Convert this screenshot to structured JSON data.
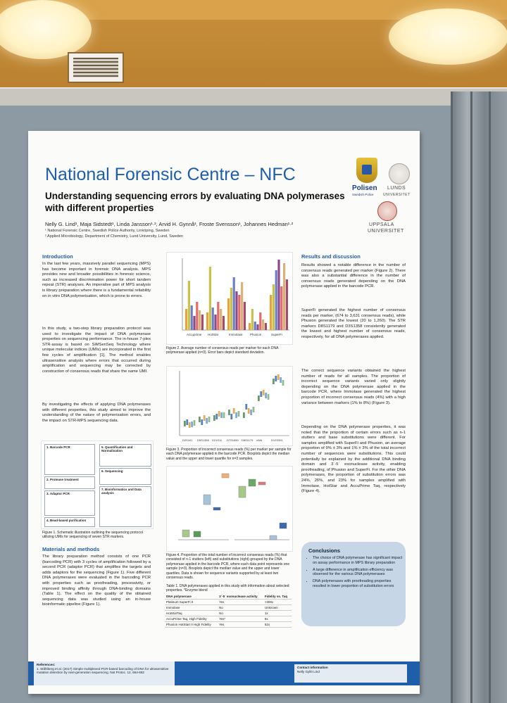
{
  "poster": {
    "title": "National Forensic Centre – NFC",
    "subtitle": "Understanding sequencing errors by evaluating DNA polymerases with different properties",
    "authors": "Nelly G. Lind¹, Maja Sidstedt¹, Linda Jansson¹·², Arvid H. Gynnå¹, Froste Svensson¹, Johannes Hedman¹·²",
    "affiliation_1": "¹ National Forensic Centre, Swedish Police Authority, Linköping, Sweden",
    "affiliation_2": "² Applied Microbiology, Department of Chemistry, Lund University, Lund, Sweden",
    "logos": {
      "police_name": "Polisen",
      "police_sub": "Swedish Police",
      "lund": "LUNDS",
      "lund_sub": "UNIVERSITET",
      "uppsala": "UPPSALA",
      "uppsala_sub": "UNIVERSITET"
    },
    "sections": {
      "intro_heading": "Introduction",
      "intro_p1": "In the last few years, massively parallel sequencing (MPS) has become important in forensic DNA analysis. MPS provides new and broader possibilities in forensic science, such as increased discrimination power for short tandem repeat (STR) analyses. An imperative part of MPS analysis is library preparation where there is a fundamental reliability on in vitro DNA polymerisation, which is prone to errors.",
      "intro_p2": "In this study, a two-step library preparation protocol was used to investigate the impact of DNA polymerase properties on sequencing performance. The in-house 7-plex STR-assay is based on SiMSenSeq Technology where unique molecular indices (UMIs) are incorporated in the first few cycles of amplification [1]. The method enables ultrasensitive analysis where errors that occurred during amplification and sequencing may be corrected by construction of consensus reads that share the same UMI.",
      "intro_p3": "By investigating the effects of applying DNA polymerases with different properties, this study aimed to improve the understanding of the nature of polymerisation errors, and the impact on STR-MPS sequencing data.",
      "methods_heading": "Materials and methods",
      "methods_p": "The library preparation method consists of one PCR (barcoding PCR) with 3 cycles of amplification followed by a second PCR (adaptor PCR) that amplifies the targets and adds adaptors for the sequencing (Figure 1). Five different DNA polymerases were evaluated in the barcoding PCR with properties such as proofreading, processivity, or improved binding affinity through DNA-binding domains (Table 1). The effect on the quality of the obtained sequencing data was studied using an in-house bioinformatic pipeline (Figure 1).",
      "results_heading": "Results and discussion",
      "results_p1": "Results showed a notable difference in the number of consensus reads generated per marker (Figure 2). There was also a substantial difference in the number of consensus reads generated depending on the DNA polymerase applied in the barcode PCR.",
      "results_p2": "SuperFi generated the highest number of consensus reads per marker, (674 to 3,631 consensus reads), while Phusion generated the lowest (20 to 1,260). The STR markers D8S1179 and D3S1358 consistently generated the lowest and highest number of consensus reads, respectively, for all DNA polymerases applied.",
      "results_p3": "The correct sequence variants obtained the highest number of reads for all samples. The proportion of incorrect sequence variants varied only slightly depending on the DNA polymerase applied in the barcode PCR, where Immolase generated the highest proportion of incorrect consensus reads (4%) with a high variance between markers (1% to 8%) (Figure 3).",
      "results_p4": "Depending on the DNA polymerase properties, it was noted that the proportion of certain errors such as n-1 stutters and base substitutions were different. For samples amplified with SuperFi and Phusion, an average proportion of 9% ± 3% and 1% ± 3% of the total incorrect number of sequences were substitutions. This could potentially be explained by the additional DNA binding domain and 3´-5´ exonuclease activity, enabling proofreading, of Phusion and SuperFi. For the other DNA polymerases, the proportion of substitution errors was 24%, 26%, and 23% for samples amplified with Immolase, HotStar and AccuPrime Taq, respectively (Figure 4)."
    },
    "figures": {
      "fig1_caption": "Figure 1. Schematic illustration outlining the sequencing protocol utilizing UMIs for sequencing of seven STR markers.",
      "fig2_caption": "Figure 2. Average number of consensus reads per marker for each DNA polymerase applied (n=3). Error bars depict standard deviation.",
      "fig3_caption": "Figure 3. Proportion of incorrect consensus reads (%) per marker per sample for each DNA polymerase applied in the barcode PCR. Boxplots depict the median value and the upper and lower quartile for n=3 samples.",
      "fig4_caption": "Figure 4. Proportion of the total number of incorrect consensus reads (%) that consisted of n-1 stutters (left) and substitutions (right) grouped by the DNA polymerase applied in the barcode PCR, where each data point represents one sample (n=3). Boxplots depict the median value and the upper and lower quartiles. Data is shown for sequence variants supported by at least two consensus reads.",
      "fig2_xlabels": [
        "Accuprime",
        "HotStar",
        "Immolase",
        "Phusion",
        "SuperFi"
      ],
      "fig3_xlabels": [
        "D2S441",
        "D5S1358",
        "D21S11",
        "D7S1650",
        "D8S1179",
        "vWA",
        "D12S391"
      ],
      "flow": {
        "barcoding": "1. Barcode PCR",
        "protease": "2. Protease treatment",
        "adaptor": "3. Adaptor PCR",
        "bead": "4. Bead-based purification",
        "quant": "5. Quantification and Normalisation",
        "seq": "6. Sequencing",
        "bioinf": "7. Bioinformatics and Data analysis"
      }
    },
    "table": {
      "caption": "Table 1. DNA polymerases applied in this study with information about selected properties. *Enzyme blend",
      "headers": [
        "DNA polymerase",
        "3´-5´ exonuclease activity",
        "Fidelity vs. Taq"
      ],
      "rows": [
        [
          "Platinum SuperFi II",
          "Yes",
          ">300x"
        ],
        [
          "Immolase",
          "No",
          "Unknown"
        ],
        [
          "HotStarTaq",
          "No",
          "1x"
        ],
        [
          "AccuPrime Taq, High Fidelity",
          "Yes*",
          "9x"
        ],
        [
          "Phusion HotStart II High Fidelity",
          "Yes",
          "52x"
        ]
      ]
    },
    "conclusions": {
      "heading": "Conclusions",
      "items": [
        "The choice of DNA polymerase has significant impact on assay performance in MPS library preparation",
        "A large difference in amplification efficiency was observed for the various DNA polymerases",
        "DNA polymerases with proofreading properties resulted in lower proportion of substitution errors"
      ]
    },
    "footer": {
      "ref_heading": "References:",
      "ref_text": "1. Ståhlberg et al. (2017) Simple multiplexed PCR-based barcoding of DNA for ultrasensitive mutation detection by next-generation sequencing. Nat Protoc. 12, 664-682",
      "contact_heading": "Contact information",
      "contact_name": "Nelly Gyllö Lind"
    }
  },
  "colors": {
    "title_blue": "#1f5ea8",
    "board_gray": "#8e9aa3",
    "wall_orange": "#b07a2e"
  }
}
